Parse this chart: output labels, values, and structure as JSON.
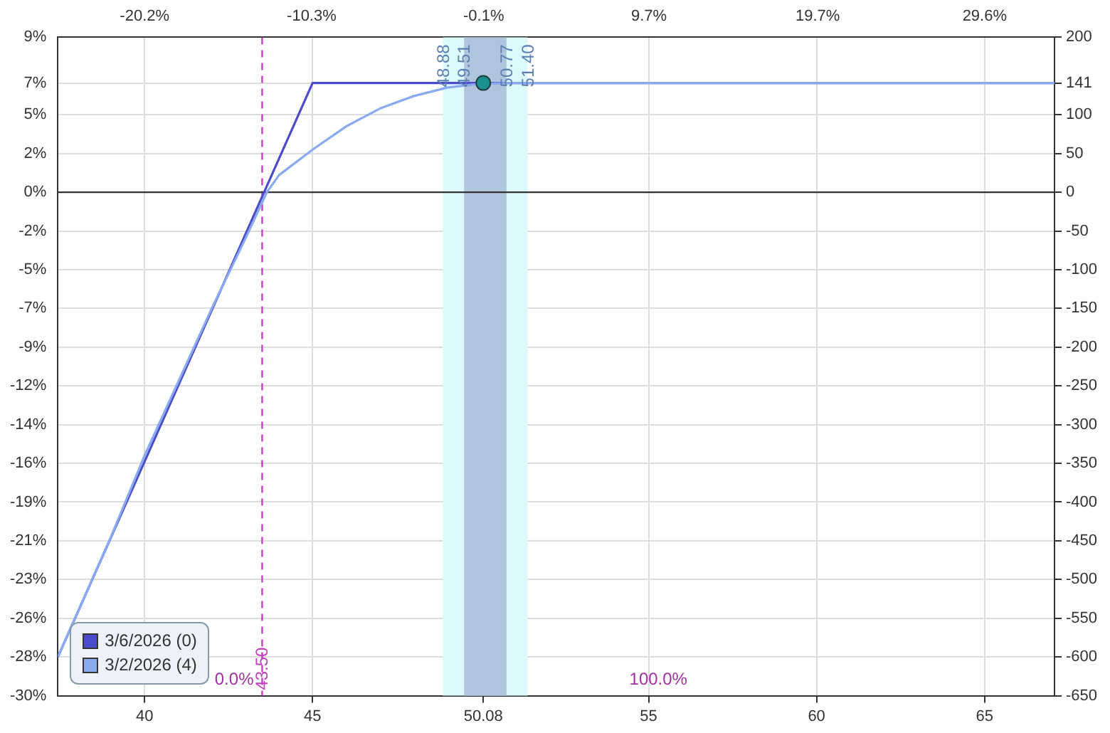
{
  "chart_data": {
    "type": "line",
    "xlim": [
      37.42,
      67.08
    ],
    "xticks": [
      40,
      45,
      50.08,
      55,
      60,
      65
    ],
    "x2lim": [
      -25.34,
      33.74
    ],
    "x2ticks": [
      {
        "value": -20.2,
        "label": "-20.2%"
      },
      {
        "value": -10.3,
        "label": "-10.3%"
      },
      {
        "value": -0.1,
        "label": "-0.1%"
      },
      {
        "value": 9.7,
        "label": "9.7%"
      },
      {
        "value": 19.7,
        "label": "19.7%"
      },
      {
        "value": 29.6,
        "label": "29.6%"
      }
    ],
    "ylim": [
      -30.3,
      9.32
    ],
    "yticks": [
      {
        "value": 9.32,
        "label": "9%"
      },
      {
        "value": 6.57,
        "label": "7%"
      },
      {
        "value": 4.66,
        "label": "5%"
      },
      {
        "value": 2.33,
        "label": "2%"
      },
      {
        "value": 0,
        "label": "0%"
      },
      {
        "value": -2.33,
        "label": "-2%"
      },
      {
        "value": -4.66,
        "label": "-5%"
      },
      {
        "value": -6.99,
        "label": "-7%"
      },
      {
        "value": -9.32,
        "label": "-9%"
      },
      {
        "value": -11.66,
        "label": "-12%"
      },
      {
        "value": -13.99,
        "label": "-14%"
      },
      {
        "value": -16.32,
        "label": "-16%"
      },
      {
        "value": -18.65,
        "label": "-19%"
      },
      {
        "value": -20.98,
        "label": "-21%"
      },
      {
        "value": -23.31,
        "label": "-23%"
      },
      {
        "value": -25.64,
        "label": "-26%"
      },
      {
        "value": -27.97,
        "label": "-28%"
      },
      {
        "value": -30.3,
        "label": "-30%"
      }
    ],
    "y2lim": [
      -650,
      200
    ],
    "y2ticks": [
      200,
      141,
      100,
      50,
      0,
      -50,
      -100,
      -150,
      -200,
      -250,
      -300,
      -350,
      -400,
      -450,
      -500,
      -550,
      -600,
      -650
    ],
    "series": [
      {
        "name": "3/6/2026 (0)",
        "axis": "y2",
        "color": "#4b4bcc",
        "x": [
          37.42,
          45,
          67.08
        ],
        "values": [
          -600,
          141,
          141
        ]
      },
      {
        "name": "3/2/2026 (4)",
        "axis": "y2",
        "color": "#8aaaf0",
        "x": [
          37.42,
          39,
          40,
          41,
          42,
          43,
          43.64,
          44,
          45,
          46,
          47,
          48,
          49,
          50,
          51,
          67.08
        ],
        "values": [
          -600,
          -445,
          -340,
          -245,
          -150,
          -60,
          0,
          22,
          55,
          85,
          108,
          124,
          135,
          140,
          141,
          141
        ]
      },
      {
        "type": "scatter",
        "axis": "y2",
        "color": "#1a9090",
        "marker": "circle",
        "x": [
          50.08
        ],
        "values": [
          141
        ]
      }
    ],
    "bands": [
      {
        "axis": "x",
        "from": 48.88,
        "to": 51.4,
        "color": "#dcfafc"
      },
      {
        "axis": "x",
        "from": 49.51,
        "to": 50.77,
        "color": "#b0c4de"
      }
    ],
    "ref_lines": [
      {
        "axis": "x",
        "value": 43.5,
        "label": "43.50",
        "color": "#c040c0",
        "line_style": "dashed"
      },
      {
        "axis": "y2",
        "value": 0,
        "color": "#333333",
        "line_style": "solid"
      }
    ],
    "annotations": [
      {
        "text": "48.88",
        "x": 48.88
      },
      {
        "text": "49.51",
        "x": 49.51
      },
      {
        "text": "50.77",
        "x": 50.77
      },
      {
        "text": "51.40",
        "x": 51.4
      },
      "0.0%",
      "100.0%"
    ],
    "grid": true,
    "legend": "bottom left"
  }
}
